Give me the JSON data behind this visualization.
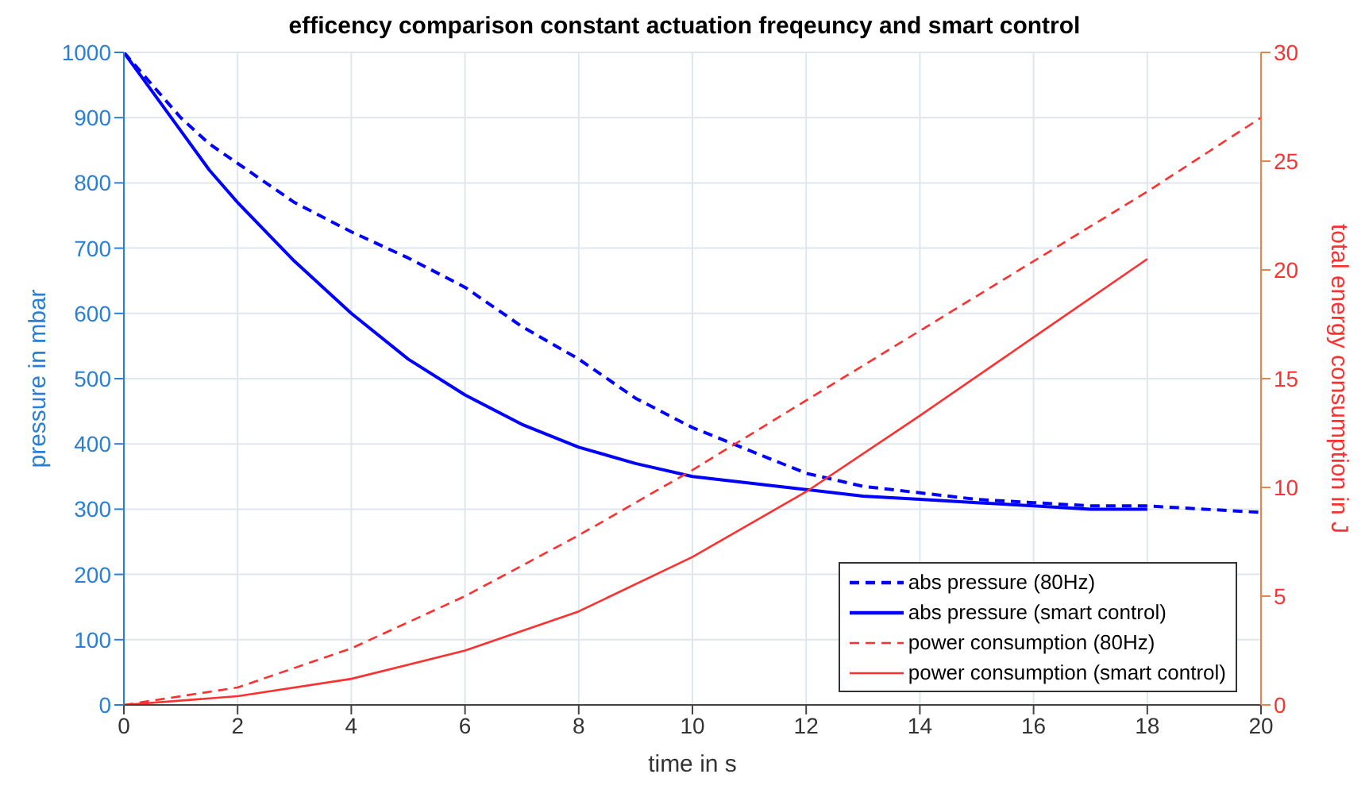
{
  "chart_data": {
    "type": "line",
    "title": "efficency comparison constant actuation freqeuncy and smart control",
    "xlabel": "time in s",
    "ylabel": "pressure in mbar",
    "y2label": "total energy consumption in J",
    "xlim": [
      0,
      20
    ],
    "xticks": [
      0,
      2,
      4,
      6,
      8,
      10,
      12,
      14,
      16,
      18,
      20
    ],
    "ylim": [
      0,
      1000
    ],
    "yticks": [
      0,
      100,
      200,
      300,
      400,
      500,
      600,
      700,
      800,
      900,
      1000
    ],
    "y2lim": [
      0,
      30
    ],
    "y2ticks": [
      0,
      5,
      10,
      15,
      20,
      25,
      30
    ],
    "grid": true,
    "legend": "bottom right",
    "series": [
      {
        "name": "abs pressure (80Hz)",
        "color": "#0000ff",
        "line_style": "dashed",
        "x": [
          0,
          0.5,
          1,
          1.5,
          2,
          3,
          4,
          5,
          6,
          7,
          8,
          9,
          10,
          11,
          12,
          13,
          14,
          15,
          16,
          17,
          18,
          19,
          20
        ],
        "values": [
          1000,
          950,
          900,
          860,
          830,
          770,
          725,
          685,
          640,
          580,
          530,
          470,
          425,
          390,
          355,
          335,
          325,
          315,
          310,
          305,
          305,
          300,
          295
        ]
      },
      {
        "name": "abs pressure (smart control)",
        "color": "#0000ff",
        "line_style": "solid",
        "x": [
          0,
          0.5,
          1,
          1.5,
          2,
          3,
          4,
          5,
          6,
          7,
          8,
          9,
          10,
          11,
          12,
          13,
          14,
          15,
          16,
          17,
          18
        ],
        "values": [
          1000,
          940,
          880,
          820,
          770,
          680,
          600,
          530,
          475,
          430,
          395,
          370,
          350,
          340,
          330,
          320,
          315,
          310,
          305,
          300,
          300
        ]
      },
      {
        "name": "power consumption (80Hz)",
        "color": "#ff3030",
        "line_style": "dashed",
        "axis": "y2",
        "x": [
          0,
          2,
          4,
          6,
          8,
          10,
          12,
          14,
          16,
          18,
          20
        ],
        "values": [
          0,
          0.8,
          2.6,
          5,
          7.8,
          10.8,
          14,
          17.2,
          20.4,
          23.6,
          27
        ]
      },
      {
        "name": "power consumption (smart control)",
        "color": "#ff3030",
        "line_style": "solid",
        "axis": "y2",
        "x": [
          0,
          2,
          4,
          6,
          8,
          10,
          12,
          14,
          16,
          18
        ],
        "values": [
          0,
          0.4,
          1.2,
          2.5,
          4.3,
          6.8,
          9.8,
          13.3,
          16.9,
          20.5
        ]
      }
    ]
  }
}
